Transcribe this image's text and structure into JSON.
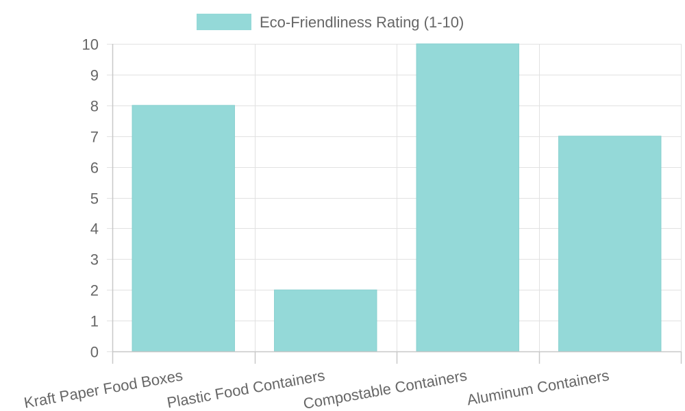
{
  "chart_data": {
    "type": "bar",
    "categories": [
      "Kraft Paper Food Boxes",
      "Plastic Food Containers",
      "Compostable Containers",
      "Aluminum Containers"
    ],
    "series": [
      {
        "name": "Eco-Friendliness Rating (1-10)",
        "values": [
          8,
          2,
          10,
          7
        ]
      }
    ],
    "ylim": [
      0,
      10
    ],
    "yticks": [
      "0",
      "1",
      "2",
      "3",
      "4",
      "5",
      "6",
      "7",
      "8",
      "9",
      "10"
    ],
    "grid": true,
    "legend_position": "top",
    "colors": {
      "bar_fill": "#94d9d8",
      "bar_stroke": "#88d0cf",
      "grid": "#e1e1e1",
      "text": "#666666"
    }
  }
}
